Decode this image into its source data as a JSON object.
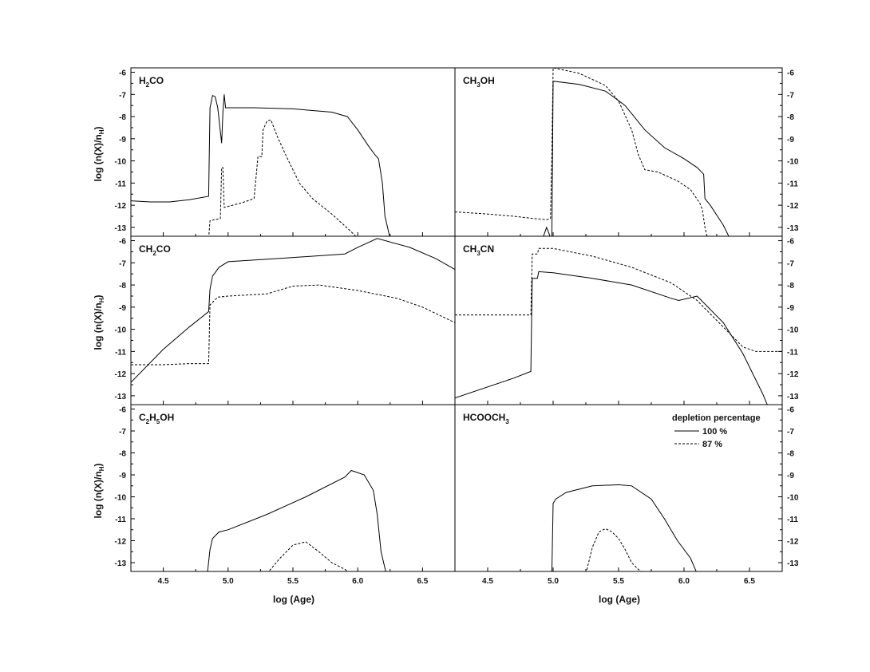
{
  "chart_data": {
    "type": "line",
    "xlabel": "log (Age)",
    "ylabel": "log (n(X)/n_H)",
    "xlim": [
      4.25,
      6.75
    ],
    "ylim": [
      -13.4,
      -5.8
    ],
    "xticks": [
      "4.5",
      "5.0",
      "5.5",
      "6.0",
      "6.5"
    ],
    "yticks": [
      "-6",
      "-7",
      "-8",
      "-9",
      "-10",
      "-11",
      "-12",
      "-13"
    ],
    "legend": {
      "title": "depletion percentage",
      "entries": [
        {
          "label": "100 %",
          "style": "solid"
        },
        {
          "label": "87 %",
          "style": "dashed"
        }
      ],
      "placement": "top-right of bottom-right panel"
    },
    "panels": [
      {
        "molecule": [
          "H",
          "2",
          "CO"
        ],
        "series": [
          {
            "label": "100 %",
            "style": "solid",
            "x": [
              4.25,
              4.4,
              4.55,
              4.7,
              4.85,
              4.86,
              4.88,
              4.9,
              4.92,
              4.95,
              4.96,
              4.97,
              4.98,
              5.0,
              5.2,
              5.5,
              5.8,
              5.92,
              6.0,
              6.08,
              6.13,
              6.16,
              6.19,
              6.21,
              6.25
            ],
            "y": [
              -11.8,
              -11.85,
              -11.85,
              -11.75,
              -11.6,
              -7.6,
              -7.05,
              -7.1,
              -7.6,
              -9.2,
              -7.8,
              -7.0,
              -7.6,
              -7.6,
              -7.6,
              -7.65,
              -7.8,
              -8.0,
              -8.6,
              -9.3,
              -9.7,
              -9.9,
              -11.0,
              -12.5,
              -13.5
            ]
          },
          {
            "label": "87 %",
            "style": "dashed",
            "x": [
              4.85,
              4.86,
              4.94,
              4.95,
              4.96,
              4.97,
              5.1,
              5.2,
              5.23,
              5.26,
              5.27,
              5.3,
              5.33,
              5.38,
              5.45,
              5.55,
              5.65,
              5.8,
              5.95,
              6.0,
              6.05
            ],
            "y": [
              -13.5,
              -12.7,
              -12.6,
              -10.3,
              -10.3,
              -12.1,
              -11.9,
              -11.7,
              -9.8,
              -9.8,
              -8.6,
              -8.2,
              -8.15,
              -8.9,
              -9.8,
              -11.0,
              -11.7,
              -12.4,
              -13.2,
              -13.5,
              -13.6
            ]
          }
        ]
      },
      {
        "molecule": [
          "CH",
          "3",
          "OH"
        ],
        "series": [
          {
            "label": "100 %",
            "style": "solid",
            "x": [
              4.92,
              4.95,
              4.97,
              4.98,
              4.99,
              5.0,
              5.2,
              5.4,
              5.55,
              5.7,
              5.85,
              6.0,
              6.1,
              6.15,
              6.16,
              6.2,
              6.3,
              6.35
            ],
            "y": [
              -13.5,
              -13.0,
              -13.3,
              -13.5,
              -13.5,
              -6.4,
              -6.55,
              -6.85,
              -7.5,
              -8.6,
              -9.4,
              -9.9,
              -10.3,
              -10.6,
              -11.7,
              -12.0,
              -12.9,
              -13.5
            ]
          },
          {
            "label": "87 %",
            "style": "dashed",
            "x": [
              4.25,
              4.5,
              4.7,
              4.85,
              4.95,
              4.98,
              4.99,
              5.0,
              5.2,
              5.4,
              5.5,
              5.6,
              5.65,
              5.7,
              5.8,
              5.95,
              6.05,
              6.12,
              6.14,
              6.16,
              6.18
            ],
            "y": [
              -12.3,
              -12.4,
              -12.5,
              -12.6,
              -12.65,
              -12.6,
              -9.7,
              -5.8,
              -6.05,
              -6.6,
              -7.3,
              -8.6,
              -9.7,
              -10.4,
              -10.5,
              -10.9,
              -11.3,
              -11.9,
              -12.2,
              -13.0,
              -13.5
            ]
          }
        ]
      },
      {
        "molecule": [
          "CH",
          "2",
          "CO"
        ],
        "series": [
          {
            "label": "100 %",
            "style": "solid",
            "x": [
              4.25,
              4.5,
              4.7,
              4.85,
              4.86,
              4.88,
              4.93,
              5.0,
              5.4,
              5.9,
              6.0,
              6.15,
              6.4,
              6.6,
              6.75
            ],
            "y": [
              -12.4,
              -10.9,
              -9.9,
              -9.2,
              -8.2,
              -7.6,
              -7.2,
              -6.95,
              -6.8,
              -6.6,
              -6.3,
              -5.9,
              -6.3,
              -6.8,
              -7.3
            ]
          },
          {
            "label": "87 %",
            "style": "dashed",
            "x": [
              4.25,
              4.5,
              4.7,
              4.85,
              4.86,
              4.92,
              5.0,
              5.3,
              5.5,
              5.7,
              6.0,
              6.3,
              6.5,
              6.75
            ],
            "y": [
              -11.6,
              -11.6,
              -11.55,
              -11.55,
              -8.9,
              -8.55,
              -8.5,
              -8.4,
              -8.05,
              -8.0,
              -8.25,
              -8.6,
              -9.0,
              -9.7
            ]
          }
        ]
      },
      {
        "molecule": [
          "CH",
          "3",
          "CN"
        ],
        "series": [
          {
            "label": "100 %",
            "style": "solid",
            "x": [
              4.25,
              4.7,
              4.83,
              4.84,
              4.88,
              4.89,
              5.0,
              5.3,
              5.6,
              5.9,
              5.96,
              6.1,
              6.3,
              6.45,
              6.6,
              6.65
            ],
            "y": [
              -13.1,
              -12.2,
              -11.9,
              -7.7,
              -7.7,
              -7.4,
              -7.45,
              -7.7,
              -8.0,
              -8.6,
              -8.7,
              -8.5,
              -9.7,
              -11.1,
              -12.9,
              -13.6
            ]
          },
          {
            "label": "87 %",
            "style": "dashed",
            "x": [
              4.25,
              4.6,
              4.83,
              4.84,
              4.88,
              4.89,
              5.0,
              5.3,
              5.6,
              5.9,
              6.1,
              6.3,
              6.45,
              6.55,
              6.75
            ],
            "y": [
              -9.35,
              -9.35,
              -9.35,
              -6.6,
              -6.6,
              -6.35,
              -6.35,
              -6.7,
              -7.2,
              -7.9,
              -8.7,
              -9.9,
              -10.8,
              -11.0,
              -11.0
            ]
          }
        ]
      },
      {
        "molecule": [
          "C",
          "2",
          "H",
          "5",
          "OH"
        ],
        "series": [
          {
            "label": "100 %",
            "style": "solid",
            "x": [
              4.25,
              4.6,
              4.8,
              4.84,
              4.86,
              4.88,
              4.93,
              5.0,
              5.3,
              5.6,
              5.9,
              5.95,
              6.05,
              6.12,
              6.15,
              6.18,
              6.22
            ],
            "y": [
              -13.5,
              -13.5,
              -13.45,
              -13.5,
              -12.4,
              -11.9,
              -11.6,
              -11.5,
              -10.8,
              -10.0,
              -9.1,
              -8.8,
              -9.0,
              -9.7,
              -10.8,
              -12.5,
              -13.5
            ]
          },
          {
            "label": "87 %",
            "style": "dashed",
            "x": [
              5.3,
              5.4,
              5.5,
              5.6,
              5.7,
              5.8,
              5.9,
              5.95
            ],
            "y": [
              -13.5,
              -12.8,
              -12.2,
              -12.05,
              -12.5,
              -13.0,
              -13.3,
              -13.5
            ]
          }
        ]
      },
      {
        "molecule": [
          "HCOOCH",
          "3",
          ""
        ],
        "series": [
          {
            "label": "100 %",
            "style": "solid",
            "x": [
              4.99,
              5.0,
              5.02,
              5.1,
              5.3,
              5.5,
              5.6,
              5.75,
              5.85,
              5.95,
              6.05,
              6.1
            ],
            "y": [
              -13.5,
              -10.3,
              -10.1,
              -9.8,
              -9.5,
              -9.45,
              -9.5,
              -10.1,
              -11.0,
              -12.0,
              -12.8,
              -13.5
            ]
          },
          {
            "label": "87 %",
            "style": "dashed",
            "x": [
              5.25,
              5.3,
              5.35,
              5.4,
              5.45,
              5.5,
              5.55,
              5.6,
              5.65,
              5.7
            ],
            "y": [
              -13.5,
              -12.3,
              -11.6,
              -11.45,
              -11.6,
              -11.9,
              -12.4,
              -13.0,
              -13.3,
              -13.5
            ]
          }
        ]
      }
    ]
  }
}
